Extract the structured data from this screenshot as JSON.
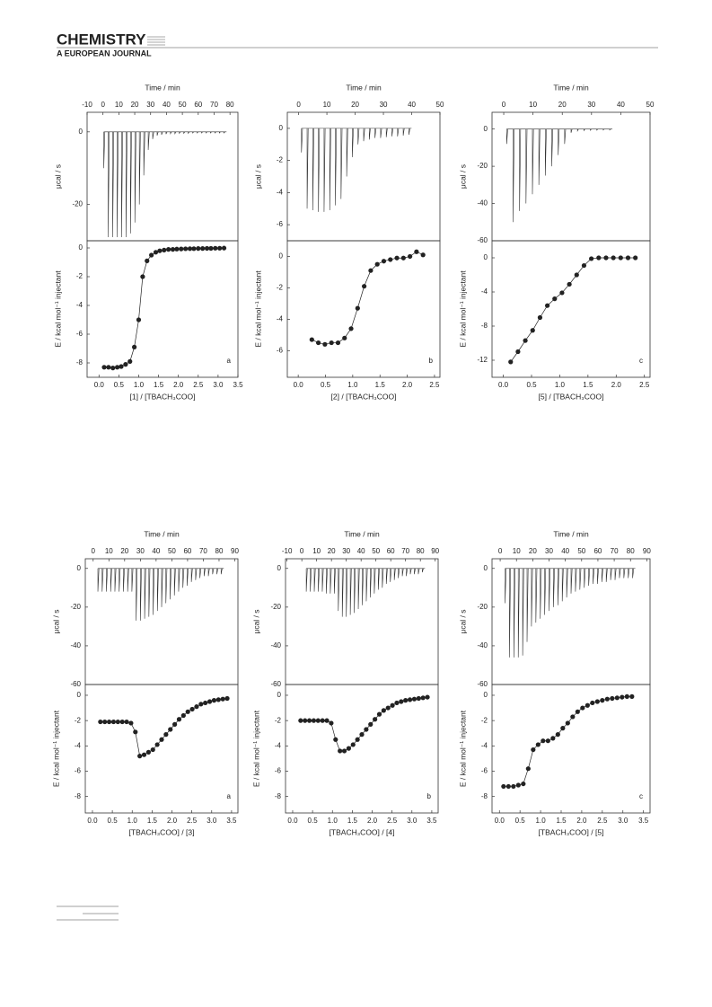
{
  "header": {
    "journal": "CHEMISTRY",
    "subtitle": "A EUROPEAN JOURNAL"
  },
  "chart_data": [
    {
      "type": "spike",
      "x_label": "Time / min",
      "y_label": "μcal / s",
      "color": "#333333",
      "xlim": [
        -10,
        85
      ],
      "ylim": [
        -30,
        5.4
      ],
      "xticks": [
        -10,
        0,
        10,
        20,
        30,
        40,
        50,
        60,
        70,
        80
      ],
      "yticks": [
        0,
        -20
      ],
      "x": [
        0.5,
        3.3,
        6.1,
        8.9,
        11.7,
        14.5,
        17.3,
        20.1,
        22.9,
        25.7,
        28.5,
        31.3,
        34.1,
        36.9,
        39.7,
        42.5,
        45.3,
        48.1,
        50.9,
        53.7,
        56.5,
        59.3,
        62.1,
        64.9,
        67.7,
        70.5,
        73.3,
        76.1
      ],
      "values": [
        -10,
        -29,
        -29,
        -29,
        -29,
        -29,
        -28,
        -25,
        -20,
        -12,
        -5,
        -2,
        -1,
        -0.8,
        -0.6,
        -0.5,
        -0.5,
        -0.4,
        -0.4,
        -0.4,
        -0.3,
        -0.3,
        -0.3,
        -0.3,
        -0.3,
        -0.3,
        -0.3,
        -0.3
      ]
    },
    {
      "type": "scatter",
      "x_label": "[1] / [TBACH₃COO]",
      "y_label": "E / kcal mol⁻¹ injectant",
      "annotation": "a",
      "color": "#222222",
      "xlim": [
        -0.3,
        3.5
      ],
      "ylim": [
        -9,
        0.5
      ],
      "xticks": [
        {
          "value": 0,
          "label": "0.0"
        },
        0.5,
        {
          "value": 1,
          "label": "1.0"
        },
        1.5,
        {
          "value": 2,
          "label": "2.0"
        },
        2.5,
        {
          "value": 3,
          "label": "3.0"
        },
        3.5
      ],
      "yticks": [
        0,
        -2,
        -4,
        -6,
        -8
      ],
      "x": [
        0.13,
        0.24,
        0.35,
        0.46,
        0.56,
        0.67,
        0.78,
        0.89,
        1.0,
        1.1,
        1.21,
        1.32,
        1.43,
        1.53,
        1.64,
        1.75,
        1.86,
        1.96,
        2.07,
        2.18,
        2.29,
        2.39,
        2.5,
        2.61,
        2.72,
        2.82,
        2.93,
        3.04,
        3.15
      ],
      "values": [
        -8.3,
        -8.3,
        -8.35,
        -8.3,
        -8.25,
        -8.1,
        -7.9,
        -6.9,
        -5.0,
        -2.0,
        -0.9,
        -0.5,
        -0.3,
        -0.2,
        -0.15,
        -0.1,
        -0.1,
        -0.08,
        -0.07,
        -0.06,
        -0.05,
        -0.05,
        -0.04,
        -0.04,
        -0.03,
        -0.03,
        -0.02,
        -0.02,
        -0.01
      ]
    },
    {
      "type": "spike",
      "x_label": "Time / min",
      "y_label": "μcal / s",
      "color": "#333333",
      "xlim": [
        -4,
        50
      ],
      "ylim": [
        -7,
        1
      ],
      "xticks": [
        0,
        10,
        20,
        30,
        40,
        50
      ],
      "yticks": [
        0,
        -2,
        -4,
        -6
      ],
      "x": [
        1,
        3,
        5,
        7,
        9,
        11,
        13,
        15,
        17,
        19,
        21,
        23,
        25,
        27,
        29,
        31,
        33,
        35,
        37,
        39
      ],
      "values": [
        -1.5,
        -5,
        -5.1,
        -5.2,
        -5.2,
        -5.1,
        -4.8,
        -4.4,
        -3.0,
        -1.8,
        -1.0,
        -0.8,
        -0.7,
        -0.6,
        -0.6,
        -0.55,
        -0.5,
        -0.5,
        -0.45,
        -0.4
      ]
    },
    {
      "type": "scatter",
      "x_label": "[2] / [TBACH₃COO]",
      "y_label": "E / kcal mol⁻¹ injectant",
      "annotation": "b",
      "color": "#222222",
      "xlim": [
        -0.2,
        2.6
      ],
      "ylim": [
        -7.7,
        1
      ],
      "xticks": [
        {
          "value": 0,
          "label": "0.0"
        },
        0.5,
        {
          "value": 1,
          "label": "1.0"
        },
        1.5,
        {
          "value": 2,
          "label": "2.0"
        },
        2.5
      ],
      "yticks": [
        0,
        -2,
        -4,
        -6
      ],
      "x": [
        0.25,
        0.37,
        0.49,
        0.61,
        0.73,
        0.85,
        0.97,
        1.09,
        1.21,
        1.33,
        1.45,
        1.57,
        1.69,
        1.81,
        1.93,
        2.05,
        2.17,
        2.29
      ],
      "values": [
        -5.3,
        -5.5,
        -5.6,
        -5.5,
        -5.5,
        -5.2,
        -4.6,
        -3.3,
        -1.9,
        -0.9,
        -0.5,
        -0.3,
        -0.2,
        -0.1,
        -0.1,
        0,
        0.3,
        0.1
      ]
    },
    {
      "type": "spike",
      "x_label": "Time / min",
      "y_label": "μcal / s",
      "color": "#333333",
      "xlim": [
        -4,
        50
      ],
      "ylim": [
        -60,
        9
      ],
      "xticks": [
        0,
        10,
        20,
        30,
        40,
        50
      ],
      "yticks": [
        0,
        -20,
        -40,
        -60
      ],
      "x": [
        1,
        3.2,
        5.4,
        7.6,
        9.8,
        12,
        14.2,
        16.4,
        18.6,
        20.8,
        23,
        25.2,
        27.4,
        29.6,
        31.8,
        34,
        36.2
      ],
      "values": [
        -8,
        -50,
        -44,
        -40,
        -35,
        -30,
        -25,
        -20,
        -14,
        -8,
        -2,
        -1,
        -0.8,
        -0.7,
        -0.6,
        -0.5,
        -0.5
      ]
    },
    {
      "type": "scatter",
      "x_label": "[5] / [TBACH₃COO]",
      "y_label": "E / kcal mol⁻¹ injectant",
      "annotation": "c",
      "color": "#222222",
      "xlim": [
        -0.2,
        2.6
      ],
      "ylim": [
        -14,
        2
      ],
      "xticks": [
        {
          "value": 0,
          "label": "0.0"
        },
        0.5,
        {
          "value": 1,
          "label": "1.0"
        },
        1.5,
        {
          "value": 2,
          "label": "2.0"
        },
        2.5
      ],
      "yticks": [
        0,
        -4,
        -8,
        -12
      ],
      "x": [
        0.13,
        0.26,
        0.39,
        0.52,
        0.65,
        0.78,
        0.91,
        1.04,
        1.17,
        1.3,
        1.43,
        1.56,
        1.69,
        1.82,
        1.95,
        2.08,
        2.21,
        2.34
      ],
      "values": [
        -12.2,
        -11,
        -9.7,
        -8.5,
        -7,
        -5.6,
        -4.8,
        -4.1,
        -3.1,
        -2,
        -0.9,
        -0.1,
        0,
        0,
        0,
        0,
        0,
        0
      ]
    },
    {
      "type": "spike",
      "x_label": "Time / min",
      "y_label": "μcal / s",
      "color": "#333333",
      "xlim": [
        -5,
        92
      ],
      "ylim": [
        -60,
        5
      ],
      "xticks": [
        0,
        10,
        20,
        30,
        40,
        50,
        60,
        70,
        80,
        90
      ],
      "yticks": [
        0,
        -20,
        -40,
        -60
      ],
      "x": [
        3,
        5.7,
        8.4,
        11.1,
        13.8,
        16.5,
        19.2,
        21.9,
        24.6,
        27.3,
        30,
        32.7,
        35.4,
        38.1,
        40.8,
        43.5,
        46.2,
        48.9,
        51.6,
        54.3,
        57,
        59.7,
        62.4,
        65.1,
        67.8,
        70.5,
        73.2,
        75.9,
        78.6,
        81.3
      ],
      "values": [
        -12,
        -12,
        -12,
        -12,
        -12,
        -12,
        -12,
        -12,
        -12,
        -27,
        -27,
        -26,
        -25,
        -24,
        -22,
        -20,
        -18,
        -16,
        -14,
        -12,
        -10,
        -9,
        -7,
        -6,
        -5,
        -4,
        -4,
        -3,
        -3,
        -3
      ]
    },
    {
      "type": "scatter",
      "x_label": "[TBACH₃COO] / [3]",
      "y_label": "E / kcal mol⁻¹ injectant",
      "annotation": "a",
      "color": "#222222",
      "xlim": [
        -0.18,
        3.66
      ],
      "ylim": [
        -9.3,
        0.85
      ],
      "xticks": [
        {
          "value": 0,
          "label": "0.0"
        },
        0.5,
        {
          "value": 1,
          "label": "1.0"
        },
        1.5,
        {
          "value": 2,
          "label": "2.0"
        },
        2.5,
        {
          "value": 3,
          "label": "3.0"
        },
        3.5
      ],
      "yticks": [
        0,
        -2,
        -4,
        -6,
        -8
      ],
      "x": [
        0.2,
        0.31,
        0.42,
        0.53,
        0.64,
        0.75,
        0.86,
        0.97,
        1.08,
        1.19,
        1.3,
        1.41,
        1.52,
        1.63,
        1.74,
        1.85,
        1.96,
        2.07,
        2.18,
        2.29,
        2.4,
        2.51,
        2.62,
        2.73,
        2.84,
        2.95,
        3.06,
        3.17,
        3.28,
        3.39
      ],
      "values": [
        -2.1,
        -2.1,
        -2.1,
        -2.1,
        -2.1,
        -2.1,
        -2.1,
        -2.2,
        -2.9,
        -4.8,
        -4.7,
        -4.5,
        -4.3,
        -3.9,
        -3.5,
        -3.1,
        -2.7,
        -2.3,
        -1.9,
        -1.6,
        -1.3,
        -1.1,
        -0.9,
        -0.7,
        -0.6,
        -0.5,
        -0.4,
        -0.35,
        -0.3,
        -0.25
      ]
    },
    {
      "type": "spike",
      "x_label": "Time / min",
      "y_label": "μcal / s",
      "color": "#333333",
      "xlim": [
        -11,
        92
      ],
      "ylim": [
        -60,
        5
      ],
      "xticks": [
        -10,
        0,
        10,
        20,
        30,
        40,
        50,
        60,
        70,
        80,
        90
      ],
      "yticks": [
        0,
        -20,
        -40,
        -60
      ],
      "x": [
        3,
        5.7,
        8.4,
        11.1,
        13.8,
        16.5,
        19.2,
        21.9,
        24.6,
        27.3,
        30,
        32.7,
        35.4,
        38.1,
        40.8,
        43.5,
        46.2,
        48.9,
        51.6,
        54.3,
        57,
        59.7,
        62.4,
        65.1,
        67.8,
        70.5,
        73.2,
        75.9,
        78.6,
        81.3
      ],
      "values": [
        -12,
        -12,
        -12,
        -12,
        -12,
        -13,
        -13,
        -13,
        -22,
        -25,
        -25,
        -24,
        -23,
        -21,
        -19,
        -17,
        -15,
        -13,
        -11,
        -10,
        -8,
        -7,
        -6,
        -5,
        -4,
        -4,
        -3,
        -3,
        -3,
        -2
      ]
    },
    {
      "type": "scatter",
      "x_label": "[TBACH₃COO] / [4]",
      "y_label": "E / kcal mol⁻¹ injectant",
      "annotation": "b",
      "color": "#222222",
      "xlim": [
        -0.18,
        3.66
      ],
      "ylim": [
        -9.3,
        0.85
      ],
      "xticks": [
        {
          "value": 0,
          "label": "0.0"
        },
        0.5,
        {
          "value": 1,
          "label": "1.0"
        },
        1.5,
        {
          "value": 2,
          "label": "2.0"
        },
        2.5,
        {
          "value": 3,
          "label": "3.0"
        },
        3.5
      ],
      "yticks": [
        0,
        -2,
        -4,
        -6,
        -8
      ],
      "x": [
        0.2,
        0.31,
        0.42,
        0.53,
        0.64,
        0.75,
        0.86,
        0.97,
        1.08,
        1.19,
        1.3,
        1.41,
        1.52,
        1.63,
        1.74,
        1.85,
        1.96,
        2.07,
        2.18,
        2.29,
        2.4,
        2.51,
        2.62,
        2.73,
        2.84,
        2.95,
        3.06,
        3.17,
        3.28,
        3.39
      ],
      "values": [
        -2.0,
        -2.0,
        -2.0,
        -2.0,
        -2.0,
        -2.0,
        -2.0,
        -2.2,
        -3.5,
        -4.4,
        -4.4,
        -4.2,
        -3.9,
        -3.5,
        -3.1,
        -2.7,
        -2.3,
        -1.9,
        -1.5,
        -1.2,
        -1.0,
        -0.8,
        -0.6,
        -0.5,
        -0.4,
        -0.35,
        -0.3,
        -0.25,
        -0.2,
        -0.15
      ]
    },
    {
      "type": "spike",
      "x_label": "Time / min",
      "y_label": "μcal / s",
      "color": "#333333",
      "xlim": [
        -5,
        92
      ],
      "ylim": [
        -60,
        5
      ],
      "xticks": [
        0,
        10,
        20,
        30,
        40,
        50,
        60,
        70,
        80,
        90
      ],
      "yticks": [
        0,
        -20,
        -40,
        -60
      ],
      "x": [
        3,
        5.7,
        8.4,
        11.1,
        13.8,
        16.5,
        19.2,
        21.9,
        24.6,
        27.3,
        30,
        32.7,
        35.4,
        38.1,
        40.8,
        43.5,
        46.2,
        48.9,
        51.6,
        54.3,
        57,
        59.7,
        62.4,
        65.1,
        67.8,
        70.5,
        73.2,
        75.9,
        78.6,
        81.3
      ],
      "values": [
        -18,
        -46,
        -46,
        -46,
        -45,
        -38,
        -30,
        -28,
        -26,
        -24,
        -22,
        -20,
        -19,
        -17,
        -15,
        -13,
        -12,
        -11,
        -10,
        -9,
        -8,
        -8,
        -7,
        -7,
        -6,
        -6,
        -5,
        -5,
        -5,
        -5
      ]
    },
    {
      "type": "scatter",
      "x_label": "[TBACH₃COO] / [5]",
      "y_label": "E / kcal mol⁻¹ injectant",
      "annotation": "c",
      "color": "#222222",
      "xlim": [
        -0.18,
        3.66
      ],
      "ylim": [
        -9.3,
        0.85
      ],
      "xticks": [
        {
          "value": 0,
          "label": "0.0"
        },
        0.5,
        {
          "value": 1,
          "label": "1.0"
        },
        1.5,
        {
          "value": 2,
          "label": "2.0"
        },
        2.5,
        {
          "value": 3,
          "label": "3.0"
        },
        3.5
      ],
      "yticks": [
        0,
        -2,
        -4,
        -6,
        -8
      ],
      "x": [
        0.1,
        0.22,
        0.34,
        0.46,
        0.58,
        0.7,
        0.82,
        0.94,
        1.06,
        1.18,
        1.3,
        1.42,
        1.54,
        1.66,
        1.78,
        1.9,
        2.02,
        2.14,
        2.26,
        2.38,
        2.5,
        2.62,
        2.74,
        2.86,
        2.98,
        3.1,
        3.22
      ],
      "values": [
        -7.2,
        -7.2,
        -7.2,
        -7.1,
        -7.0,
        -5.8,
        -4.3,
        -3.9,
        -3.6,
        -3.6,
        -3.4,
        -3.1,
        -2.6,
        -2.2,
        -1.7,
        -1.3,
        -1.0,
        -0.8,
        -0.6,
        -0.5,
        -0.4,
        -0.3,
        -0.25,
        -0.2,
        -0.15,
        -0.1,
        -0.1
      ]
    }
  ]
}
